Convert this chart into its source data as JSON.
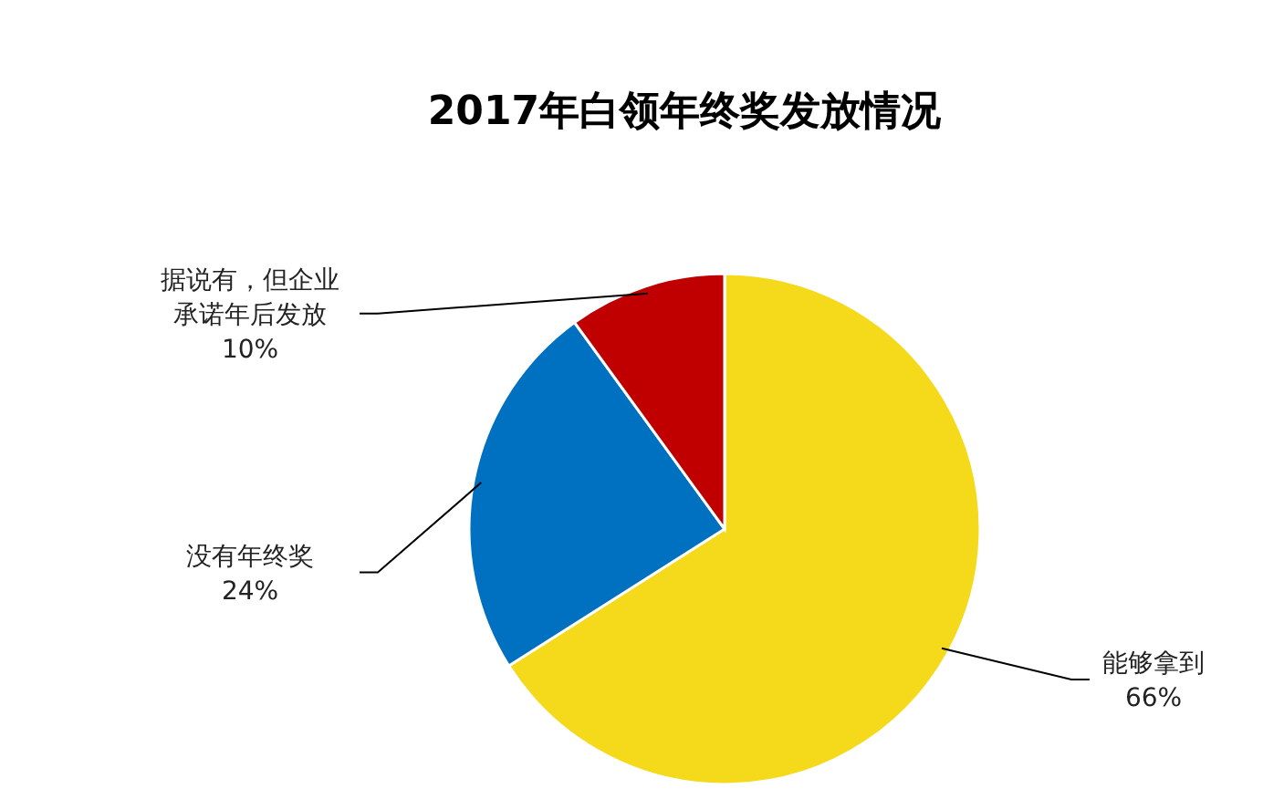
{
  "chart_data": {
    "type": "pie",
    "title": "2017年白领年终奖发放情况",
    "categories": [
      "能够拿到",
      "没有年终奖",
      "据说有，但企业承诺年后发放"
    ],
    "values": [
      66,
      24,
      10
    ],
    "colors": [
      "#f5da1c",
      "#0070c0",
      "#c00000"
    ],
    "value_labels": [
      "66%",
      "24%",
      "10%"
    ]
  }
}
